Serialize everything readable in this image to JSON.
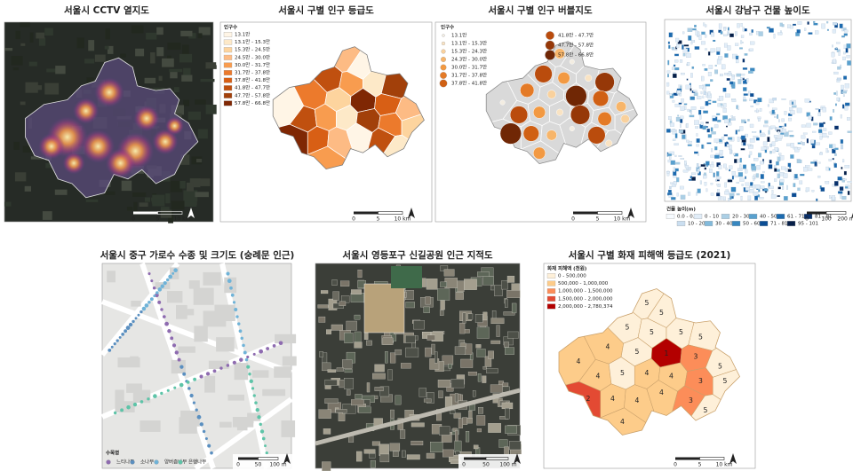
{
  "panels": [
    {
      "title": "서울시 CCTV 열지도",
      "scale_bar": [
        "0",
        "5",
        "10 km"
      ]
    },
    {
      "title": "서울시 구별 인구 등급도",
      "legend": {
        "title": "인구수",
        "items": [
          {
            "label": "13.1만",
            "color": "#fff5e6"
          },
          {
            "label": "13.1만 - 15.3만",
            "color": "#fde9c8"
          },
          {
            "label": "15.3만 - 24.5만",
            "color": "#fdd49e"
          },
          {
            "label": "24.5만 - 30.0만",
            "color": "#fdbb84"
          },
          {
            "label": "30.0만 - 31.7만",
            "color": "#f89c4f"
          },
          {
            "label": "31.7만 - 37.8만",
            "color": "#ec7a2c"
          },
          {
            "label": "37.8만 - 41.8만",
            "color": "#d85f15"
          },
          {
            "label": "41.8만 - 47.7만",
            "color": "#c0500f"
          },
          {
            "label": "47.7만 - 57.8만",
            "color": "#a2400a"
          },
          {
            "label": "57.8만 - 66.8만",
            "color": "#7f2704"
          }
        ]
      },
      "scale_bar": [
        "0",
        "5",
        "10 km"
      ]
    },
    {
      "title": "서울시 구별 인구 버블지도",
      "legend": {
        "title": "인구수",
        "items": [
          {
            "label": "13.1만",
            "color": "#f3ede2"
          },
          {
            "label": "13.1만 - 15.3만",
            "color": "#f9e3c3"
          },
          {
            "label": "15.3만 - 24.3만",
            "color": "#f9d19d"
          },
          {
            "label": "24.3만 - 30.0만",
            "color": "#f7b56a"
          },
          {
            "label": "30.0만 - 31.7만",
            "color": "#f29942"
          },
          {
            "label": "31.7만 - 37.8만",
            "color": "#e47a26"
          },
          {
            "label": "37.8만 - 41.8만",
            "color": "#d06014"
          },
          {
            "label": "41.8만 - 47.7만",
            "color": "#ba4c0d"
          },
          {
            "label": "47.7만 - 57.8만",
            "color": "#963808"
          },
          {
            "label": "57.8만 - 66.8만",
            "color": "#702705"
          }
        ]
      },
      "scale_bar": [
        "0",
        "5",
        "10 km"
      ]
    },
    {
      "title": "서울시 강남구 건물 높이도",
      "legend": {
        "title": "건물 높이(m)",
        "items": [
          {
            "label": "0.0 - 0.0",
            "color": "#f7fbff"
          },
          {
            "label": "0 - 10",
            "color": "#e1edf8"
          },
          {
            "label": "20 - 30",
            "color": "#abcfe5"
          },
          {
            "label": "40 - 50",
            "color": "#59a1cf"
          },
          {
            "label": "61 - 71",
            "color": "#1c6aaf"
          },
          {
            "label": "81 - 91",
            "color": "#08306b"
          },
          {
            "label": "10 - 20",
            "color": "#cadef0"
          },
          {
            "label": "30 - 40",
            "color": "#82badb"
          },
          {
            "label": "50 - 60",
            "color": "#3787c0"
          },
          {
            "label": "71 - 81",
            "color": "#0b4d94"
          },
          {
            "label": "95 - 101",
            "color": "#061f48"
          }
        ]
      },
      "scale_bar": [
        "0",
        "100",
        "200 m"
      ]
    },
    {
      "title": "서울시 중구 가로수 수종 및 크기도 (숭례문 인근)",
      "legend": {
        "title": "수목명",
        "items": [
          {
            "label": "느티나무",
            "color": "#8e6bb0"
          },
          {
            "label": "소나무",
            "color": "#5a8fc0"
          },
          {
            "label": "양버즘나무",
            "color": "#6fb3d8"
          },
          {
            "label": "은행나무",
            "color": "#5ec4a8"
          }
        ]
      },
      "scale_bar": [
        "0",
        "50",
        "100 m"
      ]
    },
    {
      "title": "서울시 영등포구 신길공원 인근 지적도",
      "scale_bar": [
        "0",
        "50",
        "100 m"
      ]
    },
    {
      "title": "서울시 구별 화재 피해액 등급도 (2021)",
      "legend": {
        "title": "화재 피해액 (천원)",
        "items": [
          {
            "label": "0 - 500,000",
            "color": "#fef0d9"
          },
          {
            "label": "500,000 - 1,000,000",
            "color": "#fdcc8a"
          },
          {
            "label": "1,000,000 - 1,500,000",
            "color": "#fc8d59"
          },
          {
            "label": "1,500,000 - 2,000,000",
            "color": "#e34a33"
          },
          {
            "label": "2,000,000 - 2,780,374",
            "color": "#b30000"
          }
        ]
      },
      "district_grades": [
        "5",
        "5",
        "5",
        "5",
        "5",
        "5",
        "4",
        "5",
        "1",
        "3",
        "5",
        "4",
        "4",
        "5",
        "4",
        "4",
        "3",
        "5",
        "2",
        "4",
        "4",
        "4",
        "3",
        "4",
        "5"
      ],
      "scale_bar": [
        "0",
        "5",
        "10 km"
      ]
    }
  ]
}
